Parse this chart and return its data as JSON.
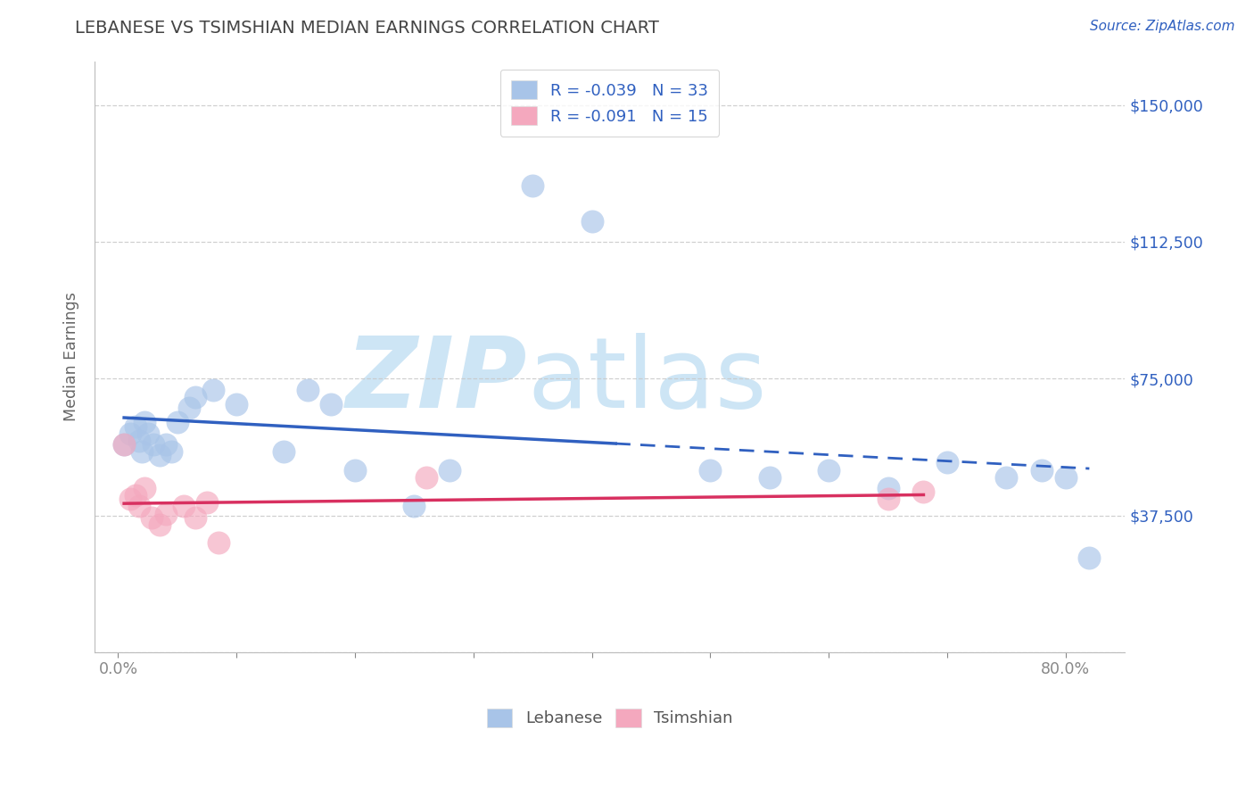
{
  "title": "LEBANESE VS TSIMSHIAN MEDIAN EARNINGS CORRELATION CHART",
  "source_text": "Source: ZipAtlas.com",
  "ylabel_text": "Median Earnings",
  "y_ticks": [
    0,
    37500,
    75000,
    112500,
    150000
  ],
  "y_tick_labels": [
    "",
    "$37,500",
    "$75,000",
    "$112,500",
    "$150,000"
  ],
  "x_ticks": [
    0.0,
    0.1,
    0.2,
    0.3,
    0.4,
    0.5,
    0.6,
    0.7,
    0.8
  ],
  "x_tick_labels": [
    "0.0%",
    "",
    "",
    "",
    "",
    "",
    "",
    "",
    "80.0%"
  ],
  "xlim": [
    -0.02,
    0.85
  ],
  "ylim": [
    12000,
    162000
  ],
  "r_lebanese": -0.039,
  "n_lebanese": 33,
  "r_tsimshian": -0.091,
  "n_tsimshian": 15,
  "lebanese_color": "#a8c4e8",
  "tsimshian_color": "#f4a8be",
  "lebanese_line_color": "#3060c0",
  "tsimshian_line_color": "#d83060",
  "lebanese_x": [
    0.005,
    0.01,
    0.015,
    0.018,
    0.02,
    0.022,
    0.025,
    0.03,
    0.035,
    0.04,
    0.045,
    0.05,
    0.06,
    0.065,
    0.08,
    0.1,
    0.14,
    0.16,
    0.18,
    0.2,
    0.25,
    0.28,
    0.35,
    0.4,
    0.5,
    0.55,
    0.6,
    0.65,
    0.7,
    0.75,
    0.78,
    0.8,
    0.82
  ],
  "lebanese_y": [
    57000,
    60000,
    62000,
    58000,
    55000,
    63000,
    60000,
    57000,
    54000,
    57000,
    55000,
    63000,
    67000,
    70000,
    72000,
    68000,
    55000,
    72000,
    68000,
    50000,
    40000,
    50000,
    128000,
    118000,
    50000,
    48000,
    50000,
    45000,
    52000,
    48000,
    50000,
    48000,
    26000
  ],
  "tsimshian_x": [
    0.005,
    0.01,
    0.015,
    0.018,
    0.022,
    0.028,
    0.035,
    0.04,
    0.055,
    0.065,
    0.075,
    0.085,
    0.26,
    0.65,
    0.68
  ],
  "tsimshian_y": [
    57000,
    42000,
    43000,
    40000,
    45000,
    37000,
    35000,
    38000,
    40000,
    37000,
    41000,
    30000,
    48000,
    42000,
    44000
  ],
  "background_color": "#ffffff",
  "grid_color": "#c8c8c8",
  "title_color": "#444444",
  "axis_label_color": "#666666",
  "right_tick_color": "#3060c0",
  "bottom_tick_color": "#888888",
  "source_color": "#3060c0",
  "legend_text_color": "#3060c0",
  "bottom_legend_label_color": "#555555"
}
